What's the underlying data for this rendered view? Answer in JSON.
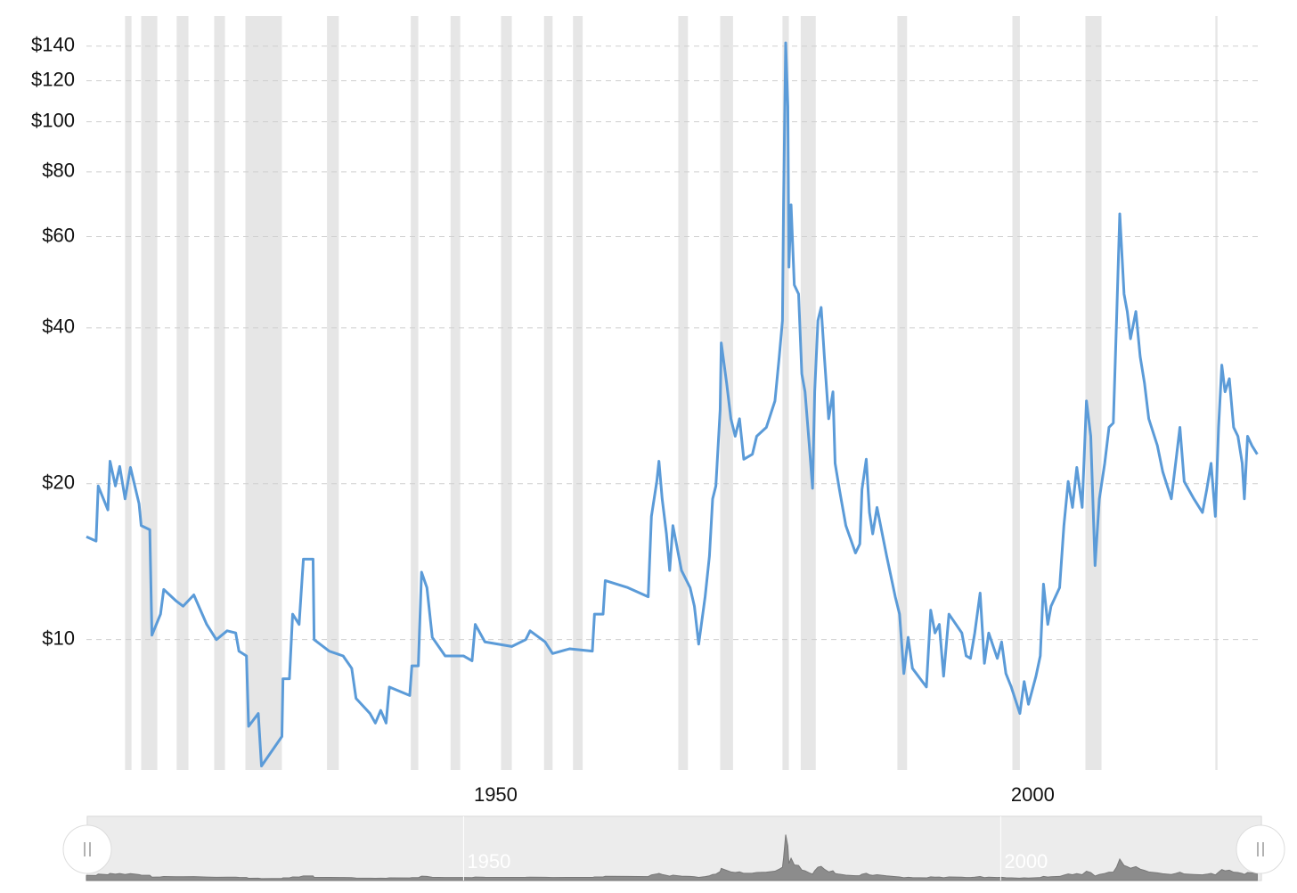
{
  "chart_data": {
    "type": "line",
    "log_y": true,
    "grid": true,
    "color": "#5b9bd8",
    "recession_color": "#e6e6e6",
    "xlim": [
      1911.9,
      2021.2
    ],
    "ylim": [
      5.6,
      160
    ],
    "xticks": [
      1950,
      2000
    ],
    "yticks": [
      {
        "value": 10,
        "label": "$10"
      },
      {
        "value": 20,
        "label": "$20"
      },
      {
        "value": 40,
        "label": "$40"
      },
      {
        "value": 60,
        "label": "$60"
      },
      {
        "value": 80,
        "label": "$80"
      },
      {
        "value": 100,
        "label": "$100"
      },
      {
        "value": 120,
        "label": "$120"
      },
      {
        "value": 140,
        "label": "$140"
      }
    ],
    "recessions": [
      [
        1915.5,
        1916.1
      ],
      [
        1917.0,
        1918.5
      ],
      [
        1920.3,
        1921.4
      ],
      [
        1923.8,
        1924.8
      ],
      [
        1926.7,
        1930.1
      ],
      [
        1934.3,
        1935.4
      ],
      [
        1942.1,
        1942.8
      ],
      [
        1945.8,
        1946.7
      ],
      [
        1950.5,
        1951.5
      ],
      [
        1954.5,
        1955.3
      ],
      [
        1957.2,
        1958.1
      ],
      [
        1967.0,
        1967.9
      ],
      [
        1970.9,
        1972.1
      ],
      [
        1976.7,
        1977.3
      ],
      [
        1978.4,
        1979.8
      ],
      [
        1987.4,
        1988.3
      ],
      [
        1998.1,
        1998.8
      ],
      [
        2004.9,
        2006.4
      ],
      [
        2017.0,
        2017.2
      ]
    ],
    "x": [
      1911.9,
      1912.8,
      1913.0,
      1913.9,
      1914.1,
      1914.6,
      1915.0,
      1915.5,
      1916.0,
      1916.8,
      1917.0,
      1917.8,
      1918.0,
      1918.8,
      1919.1,
      1920.2,
      1920.9,
      1921.9,
      1923.1,
      1924.0,
      1925.0,
      1925.8,
      1926.1,
      1926.8,
      1927.0,
      1927.9,
      1928.2,
      1930.1,
      1930.2,
      1930.8,
      1931.1,
      1931.7,
      1932.1,
      1933.0,
      1933.1,
      1934.5,
      1935.8,
      1936.6,
      1937.0,
      1938.3,
      1938.8,
      1939.3,
      1939.8,
      1940.1,
      1942.0,
      1942.2,
      1942.8,
      1943.1,
      1943.6,
      1944.1,
      1945.3,
      1947.0,
      1947.8,
      1948.1,
      1949.0,
      1951.5,
      1952.8,
      1953.2,
      1954.6,
      1955.3,
      1956.9,
      1959.0,
      1959.2,
      1960.0,
      1960.2,
      1962.3,
      1964.2,
      1964.5,
      1965.0,
      1965.2,
      1965.5,
      1965.9,
      1966.2,
      1966.5,
      1967.3,
      1968.1,
      1968.5,
      1968.9,
      1969.5,
      1969.9,
      1970.2,
      1970.5,
      1970.9,
      1971.0,
      1971.5,
      1971.9,
      1972.3,
      1972.7,
      1973.1,
      1973.9,
      1974.3,
      1975.2,
      1976.0,
      1976.4,
      1976.7,
      1976.8,
      1977.0,
      1977.2,
      1977.3,
      1977.5,
      1977.8,
      1978.2,
      1978.5,
      1978.8,
      1979.2,
      1979.5,
      1979.7,
      1980.0,
      1980.3,
      1980.6,
      1981.0,
      1981.4,
      1981.6,
      1982.0,
      1982.6,
      1983.5,
      1983.9,
      1984.1,
      1984.5,
      1984.8,
      1985.1,
      1985.5,
      1986.4,
      1987.2,
      1987.6,
      1988.0,
      1988.4,
      1988.8,
      1990.1,
      1990.5,
      1990.9,
      1991.3,
      1991.7,
      1992.2,
      1993.4,
      1993.8,
      1994.2,
      1994.6,
      1995.1,
      1995.5,
      1995.9,
      1996.7,
      1997.1,
      1997.5,
      1998.0,
      1998.8,
      1999.2,
      1999.6,
      2000.3,
      2000.7,
      2001.0,
      2001.4,
      2001.7,
      2002.5,
      2002.9,
      2003.3,
      2003.7,
      2004.1,
      2004.6,
      2005.0,
      2005.4,
      2005.8,
      2006.2,
      2006.7,
      2007.1,
      2007.5,
      2007.8,
      2008.1,
      2008.5,
      2008.8,
      2009.1,
      2009.6,
      2010.0,
      2010.4,
      2010.8,
      2011.6,
      2012.1,
      2012.9,
      2013.3,
      2013.7,
      2014.1,
      2015.0,
      2015.8,
      2016.2,
      2016.6,
      2017.0,
      2017.3,
      2017.6,
      2017.9,
      2018.3,
      2018.7,
      2019.1,
      2019.5,
      2019.7,
      2020.0,
      2020.4,
      2020.9
    ],
    "values": [
      15.8,
      15.5,
      19.8,
      17.8,
      22.1,
      19.8,
      21.6,
      18.7,
      21.5,
      18.3,
      16.6,
      16.3,
      10.2,
      11.2,
      12.5,
      11.9,
      11.6,
      12.2,
      10.7,
      10.0,
      10.4,
      10.3,
      9.5,
      9.3,
      6.8,
      7.2,
      5.7,
      6.5,
      8.4,
      8.4,
      11.2,
      10.7,
      14.3,
      14.3,
      10.0,
      9.5,
      9.3,
      8.8,
      7.7,
      7.2,
      6.9,
      7.3,
      6.9,
      8.1,
      7.8,
      8.9,
      8.9,
      13.5,
      12.6,
      10.1,
      9.3,
      9.3,
      9.1,
      10.7,
      9.9,
      9.7,
      10.0,
      10.4,
      9.9,
      9.4,
      9.6,
      9.5,
      11.2,
      11.2,
      13.0,
      12.6,
      12.1,
      17.3,
      20.2,
      22.1,
      18.7,
      16.0,
      13.6,
      16.6,
      13.6,
      12.6,
      11.6,
      9.8,
      12.1,
      14.5,
      18.7,
      19.8,
      27.8,
      37.4,
      31.3,
      26.7,
      24.7,
      26.7,
      22.3,
      22.8,
      24.7,
      25.7,
      28.9,
      35.2,
      41.3,
      69.1,
      142,
      107,
      52.4,
      69.1,
      48.4,
      46.5,
      32.6,
      30.1,
      23.7,
      19.6,
      30.1,
      41.3,
      43.8,
      35.2,
      26.7,
      30.1,
      21.9,
      19.5,
      16.6,
      14.7,
      15.3,
      19.5,
      22.3,
      17.6,
      16.0,
      18.0,
      14.5,
      12.1,
      11.2,
      8.6,
      10.1,
      8.8,
      8.1,
      11.4,
      10.3,
      10.7,
      8.5,
      11.2,
      10.3,
      9.3,
      9.2,
      10.3,
      12.3,
      9.0,
      10.3,
      9.2,
      9.9,
      8.6,
      8.1,
      7.2,
      8.3,
      7.5,
      8.5,
      9.3,
      12.8,
      10.7,
      11.6,
      12.6,
      16.6,
      20.2,
      18.0,
      21.5,
      18.0,
      28.9,
      24.7,
      13.9,
      18.7,
      21.9,
      25.7,
      26.2,
      41.3,
      66.4,
      46.5,
      43.0,
      38.1,
      43.0,
      35.2,
      31.3,
      26.7,
      23.7,
      21.1,
      18.7,
      21.9,
      25.7,
      20.2,
      18.7,
      17.6,
      19.5,
      21.9,
      17.3,
      25.7,
      33.9,
      30.1,
      31.9,
      25.7,
      24.7,
      21.9,
      18.7,
      24.7,
      23.7,
      22.8
    ]
  }
}
